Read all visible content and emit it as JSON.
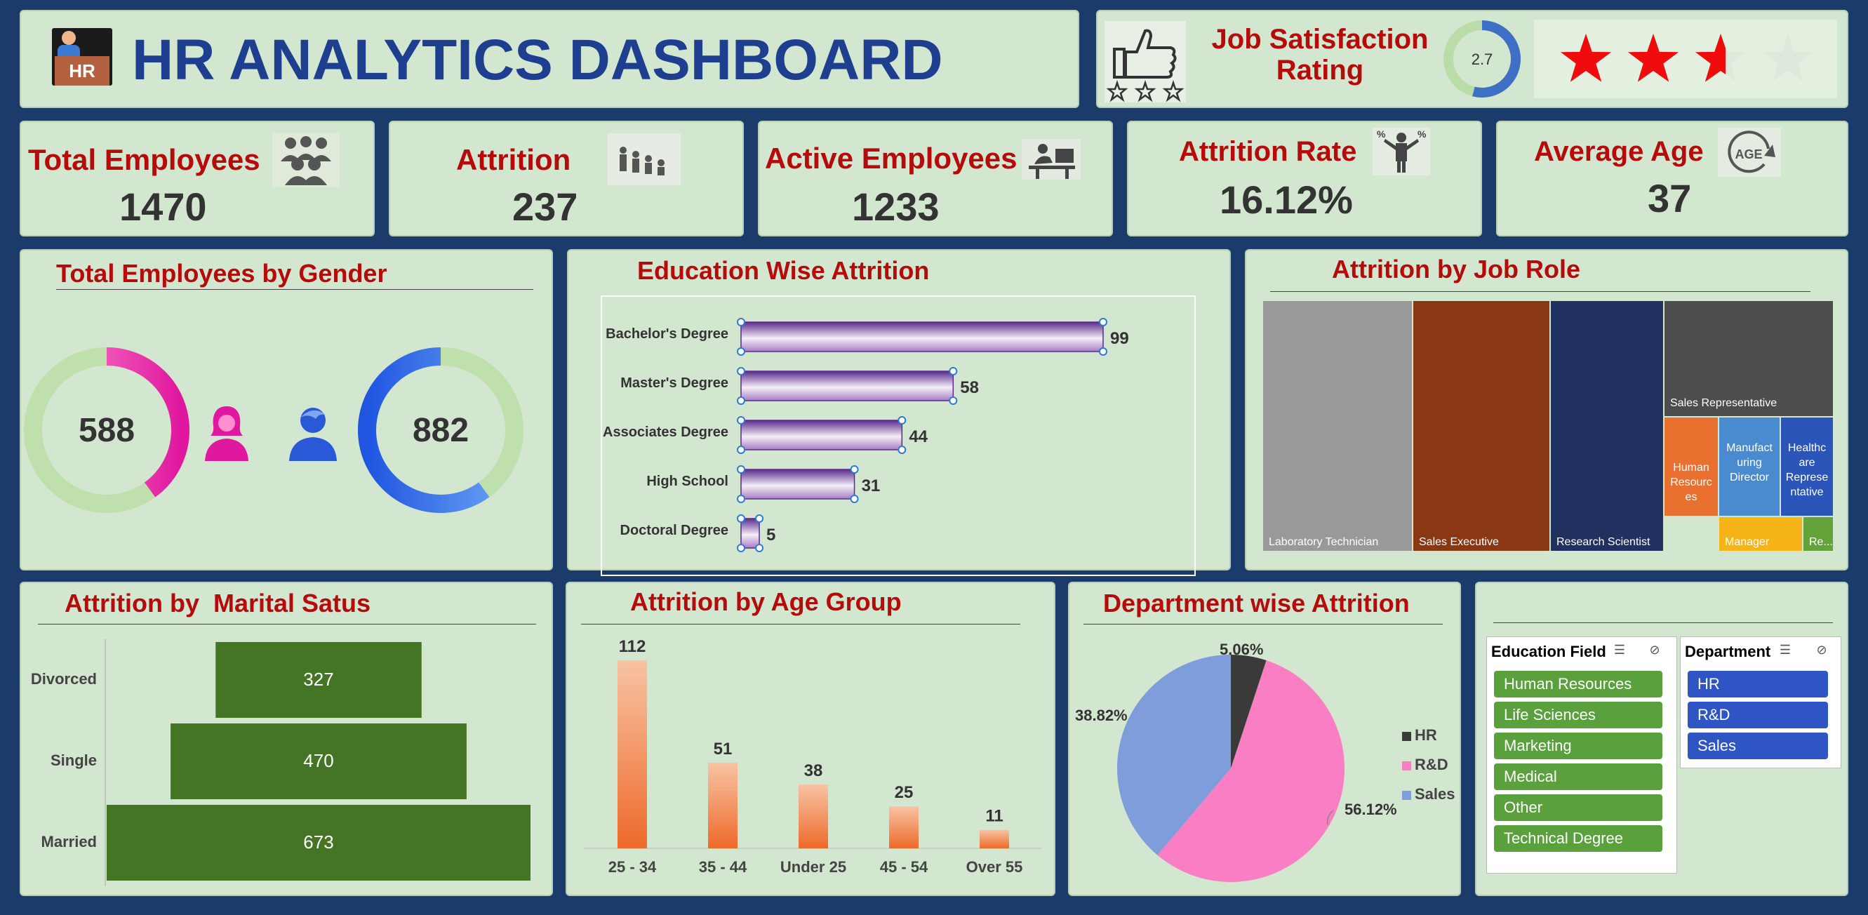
{
  "header": {
    "title": "HR ANALYTICS DASHBOARD",
    "logo_text": "HR"
  },
  "satisfaction": {
    "title_line1": "Job Satisfaction",
    "title_line2": "Rating",
    "value": "2.7",
    "rating_fraction": 0.54,
    "stars_filled": 2.6,
    "stars_total": 4
  },
  "kpis": [
    {
      "label": "Total Employees",
      "value": "1470",
      "icon": "people-group-icon"
    },
    {
      "label": "Attrition",
      "value": "237",
      "icon": "people-falling-icon"
    },
    {
      "label": "Active Employees",
      "value": "1233",
      "icon": "person-at-desk-icon"
    },
    {
      "label": "Attrition Rate",
      "value": "16.12%",
      "icon": "businessman-percent-icon"
    },
    {
      "label": "Average Age",
      "value": "37",
      "icon": "age-cycle-icon"
    }
  ],
  "gender": {
    "title": "Total Employees by Gender",
    "female": "588",
    "male": "882",
    "female_fraction": 0.4,
    "male_fraction": 0.6
  },
  "colors": {
    "bg": "#1b3c6b",
    "panel": "#d3e6cf",
    "title": "#b50b0b",
    "header": "#1e3f8f",
    "green_bar": "#437525",
    "orange": "#ee7d3b",
    "slicer_green": "#5aa03c",
    "slicer_blue": "#2f54c4"
  },
  "charts": {
    "education_title": "Education Wise Attrition",
    "jobrole_title": "Attrition by Job Role",
    "marital_title": "Attrition by  Marital Satus",
    "age_title": "Attrition by Age Group",
    "dept_title": "Department wise Attrition"
  },
  "chart_data": [
    {
      "type": "bar",
      "orientation": "horizontal",
      "title": "Education Wise Attrition",
      "categories": [
        "Bachelor's Degree",
        "Master's Degree",
        "Associates Degree",
        "High School",
        "Doctoral Degree"
      ],
      "values": [
        99,
        58,
        44,
        31,
        5
      ]
    },
    {
      "type": "treemap",
      "title": "Attrition by Job Role",
      "categories": [
        "Laboratory Technician",
        "Sales Executive",
        "Research Scientist",
        "Sales Representative",
        "Human Resources",
        "Manufacturing Director",
        "Healthcare Representative",
        "Manager",
        "Re..."
      ],
      "colors": [
        "#999999",
        "#8a3814",
        "#20315f",
        "#4d4d4d",
        "#ea7030",
        "#4a8bd0",
        "#2b55b9",
        "#f6b419",
        "#64a33a"
      ]
    },
    {
      "type": "bar",
      "orientation": "horizontal",
      "title": "Attrition by  Marital Satus",
      "categories": [
        "Divorced",
        "Single",
        "Married"
      ],
      "values": [
        327,
        470,
        673
      ]
    },
    {
      "type": "bar",
      "title": "Attrition by Age Group",
      "categories": [
        "25 - 34",
        "35 - 44",
        "Under 25",
        "45 - 54",
        "Over 55"
      ],
      "values": [
        112,
        51,
        38,
        25,
        11
      ]
    },
    {
      "type": "pie",
      "title": "Department wise Attrition",
      "categories": [
        "HR",
        "R&D",
        "Sales"
      ],
      "values": [
        5.06,
        56.12,
        38.82
      ],
      "labels": [
        "5.06%",
        "56.12%",
        "38.82%"
      ],
      "colors": [
        "#3a3a3a",
        "#f97ec4",
        "#7f9cdb"
      ],
      "legend": "right"
    }
  ],
  "slicers": [
    {
      "title": "Education Field",
      "items": [
        "Human Resources",
        "Life Sciences",
        "Marketing",
        "Medical",
        "Other",
        "Technical Degree"
      ]
    },
    {
      "title": "Department",
      "items": [
        "HR",
        "R&D",
        "Sales"
      ]
    }
  ]
}
